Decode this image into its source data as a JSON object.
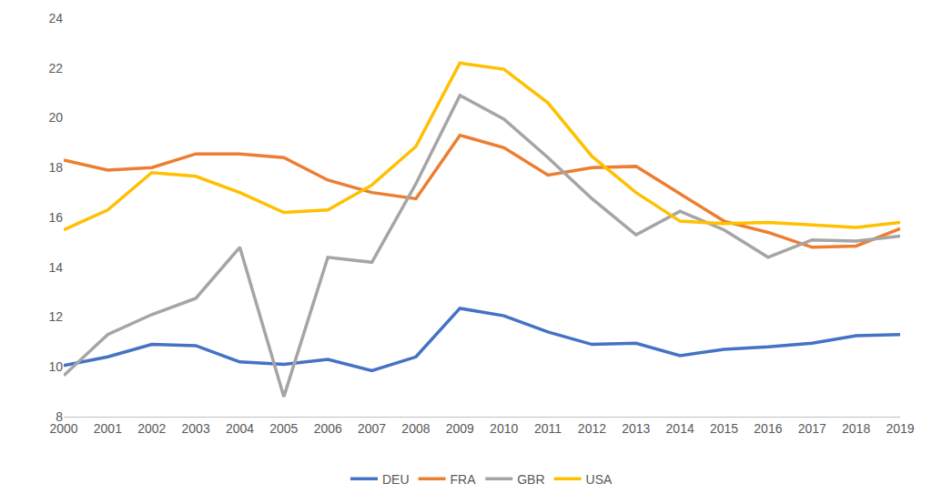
{
  "chart_data": {
    "type": "line",
    "categories": [
      "2000",
      "2001",
      "2002",
      "2003",
      "2004",
      "2005",
      "2006",
      "2007",
      "2008",
      "2009",
      "2010",
      "2011",
      "2012",
      "2013",
      "2014",
      "2015",
      "2016",
      "2017",
      "2018",
      "2019"
    ],
    "series": [
      {
        "name": "DEU",
        "color": "#4472C4",
        "values": [
          10.05,
          10.4,
          10.9,
          10.85,
          10.2,
          10.1,
          10.3,
          9.85,
          10.4,
          12.35,
          12.05,
          11.4,
          10.9,
          10.95,
          10.45,
          10.7,
          10.8,
          10.95,
          11.25,
          11.3
        ]
      },
      {
        "name": "FRA",
        "color": "#ED7D31",
        "values": [
          18.3,
          17.9,
          18.0,
          18.55,
          18.55,
          18.4,
          17.5,
          17.0,
          16.75,
          19.3,
          18.8,
          17.7,
          18.0,
          18.05,
          16.95,
          15.85,
          15.4,
          14.8,
          14.85,
          15.55
        ]
      },
      {
        "name": "GBR",
        "color": "#A5A5A5",
        "values": [
          9.65,
          11.3,
          12.1,
          12.75,
          14.8,
          8.8,
          14.4,
          14.2,
          17.35,
          20.9,
          19.95,
          18.4,
          16.75,
          15.3,
          16.25,
          15.5,
          14.4,
          15.1,
          15.05,
          15.25
        ]
      },
      {
        "name": "USA",
        "color": "#FFC000",
        "values": [
          15.5,
          16.3,
          17.8,
          17.65,
          17.0,
          16.2,
          16.3,
          17.3,
          18.85,
          22.2,
          21.95,
          20.6,
          18.45,
          17.0,
          15.85,
          15.75,
          15.8,
          15.7,
          15.6,
          15.8
        ]
      }
    ],
    "ylim": [
      8,
      24
    ],
    "yticks": [
      8,
      10,
      12,
      14,
      16,
      18,
      20,
      22,
      24
    ],
    "grid": false,
    "legend": "bottom"
  }
}
